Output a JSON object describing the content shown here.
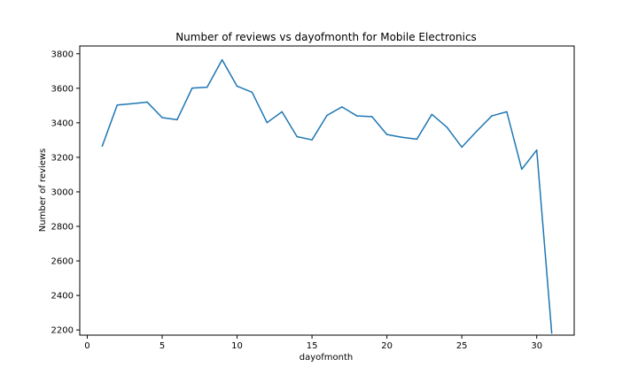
{
  "chart_data": {
    "type": "line",
    "title": "Number of reviews vs dayofmonth for Mobile Electronics",
    "xlabel": "dayofmonth",
    "ylabel": "Number of reviews",
    "xlim": [
      -0.5,
      32.5
    ],
    "ylim": [
      2170,
      3845
    ],
    "xticks": [
      0,
      5,
      10,
      15,
      20,
      25,
      30
    ],
    "yticks": [
      2200,
      2400,
      2600,
      2800,
      3000,
      3200,
      3400,
      3600,
      3800
    ],
    "grid": false,
    "series": [
      {
        "color": "#1f77b4",
        "x": [
          1,
          2,
          3,
          4,
          5,
          6,
          7,
          8,
          9,
          10,
          11,
          12,
          13,
          14,
          15,
          16,
          17,
          18,
          19,
          20,
          21,
          22,
          23,
          24,
          25,
          26,
          27,
          28,
          29,
          30,
          31
        ],
        "y": [
          3265,
          3503,
          3511,
          3520,
          3430,
          3418,
          3601,
          3606,
          3765,
          3612,
          3577,
          3401,
          3464,
          3320,
          3301,
          3443,
          3492,
          3440,
          3436,
          3332,
          3316,
          3305,
          3449,
          3375,
          3259,
          3352,
          3440,
          3464,
          3131,
          3242,
          2182
        ]
      }
    ]
  }
}
